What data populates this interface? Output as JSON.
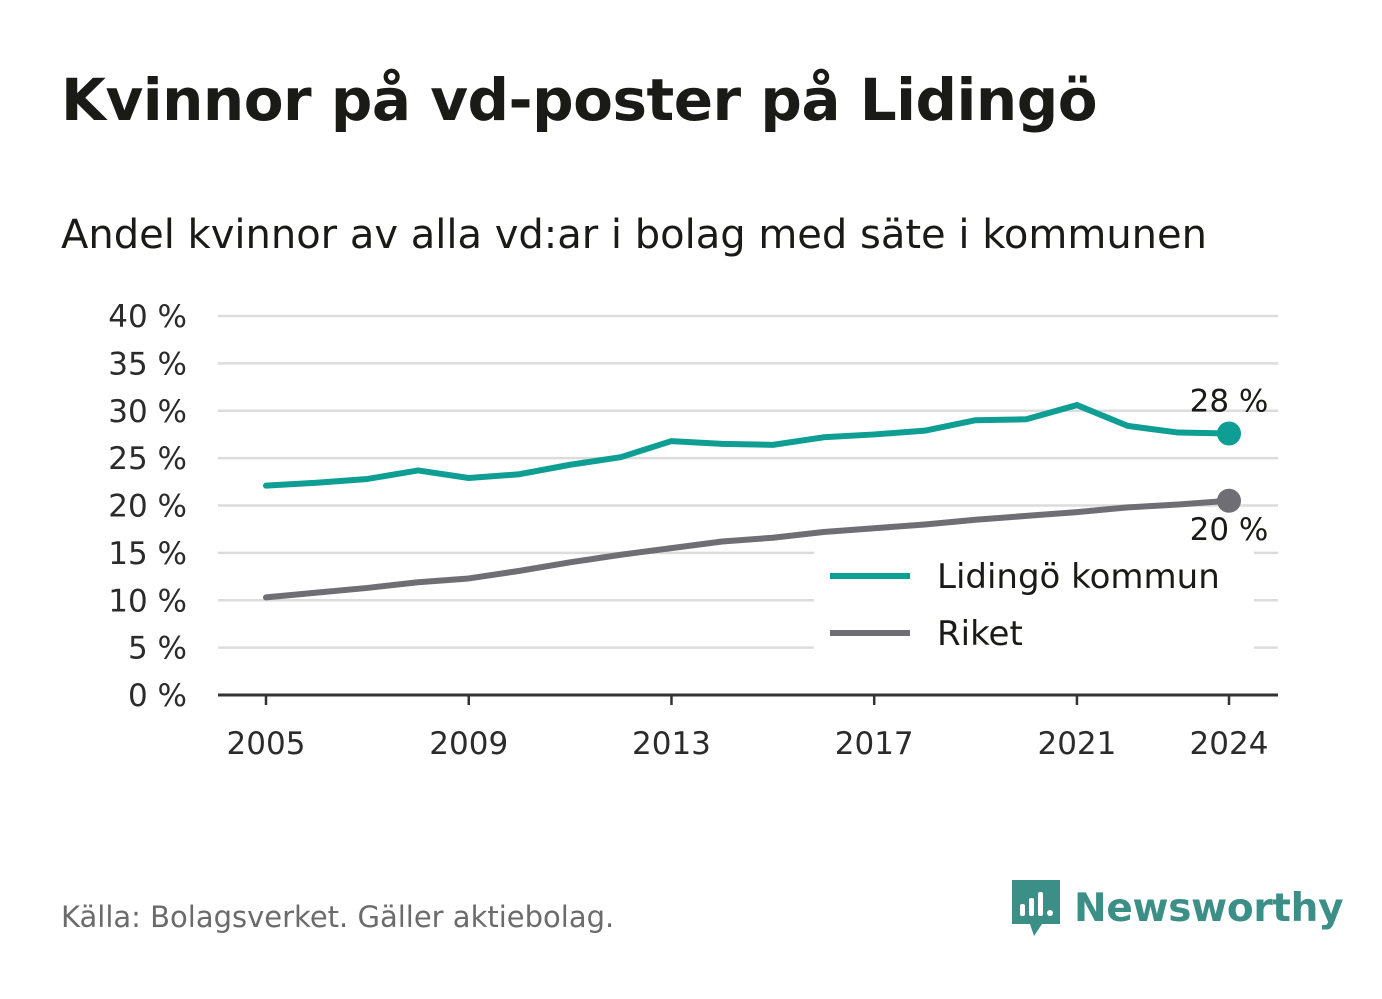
{
  "title": "Kvinnor på vd-poster på Lidingö",
  "subtitle": "Andel kvinnor av alla vd:ar i bolag med säte i kommunen",
  "source": "Källa: Bolagsverket. Gäller aktiebolag.",
  "brand": {
    "name": "Newsworthy",
    "icon": "newsworthy-logo-icon",
    "color": "#3b8f87"
  },
  "chart_data": {
    "type": "line",
    "title": "Kvinnor på vd-poster på Lidingö",
    "subtitle": "Andel kvinnor av alla vd:ar i bolag med säte i kommunen",
    "x": [
      2005,
      2006,
      2007,
      2008,
      2009,
      2010,
      2011,
      2012,
      2013,
      2014,
      2015,
      2016,
      2017,
      2018,
      2019,
      2020,
      2021,
      2022,
      2023,
      2024
    ],
    "x_ticks": [
      "2005",
      "2009",
      "2013",
      "2017",
      "2021",
      "2024"
    ],
    "y_ticks": [
      "0 %",
      "5 %",
      "10 %",
      "15 %",
      "20 %",
      "25 %",
      "30 %",
      "35 %",
      "40 %"
    ],
    "ylim": [
      0,
      40
    ],
    "grid": true,
    "legend_position": "bottom-right",
    "series": [
      {
        "name": "Lidingö kommun",
        "color": "#0e9e94",
        "values": [
          22.1,
          22.4,
          22.8,
          23.7,
          22.9,
          23.3,
          24.3,
          25.1,
          26.8,
          26.5,
          26.4,
          27.2,
          27.5,
          27.9,
          29.0,
          29.1,
          30.6,
          28.4,
          27.7,
          27.6
        ],
        "end_label": "28 %"
      },
      {
        "name": "Riket",
        "color": "#6f6e74",
        "values": [
          10.3,
          10.8,
          11.3,
          11.9,
          12.3,
          13.1,
          14.0,
          14.8,
          15.5,
          16.2,
          16.6,
          17.2,
          17.6,
          18.0,
          18.5,
          18.9,
          19.3,
          19.8,
          20.1,
          20.5
        ],
        "end_label": "20 %"
      }
    ]
  }
}
